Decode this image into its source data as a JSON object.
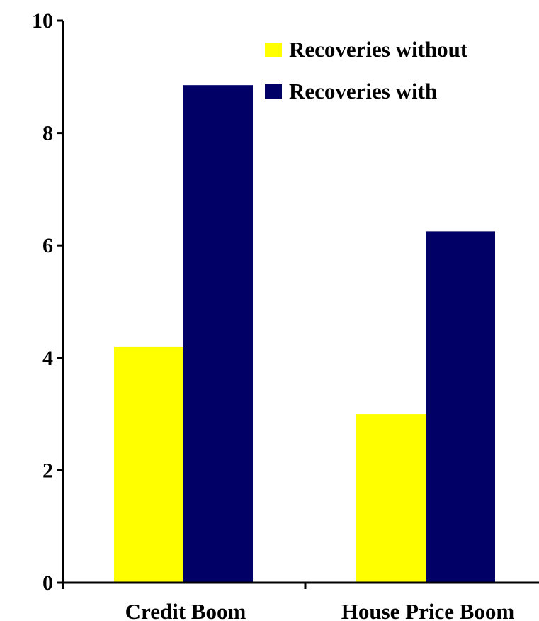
{
  "chart_data": {
    "type": "bar",
    "categories": [
      "Credit Boom",
      "House Price Boom"
    ],
    "series": [
      {
        "name": "Recoveries without",
        "values": [
          4.2,
          3.0
        ],
        "color": "#ffff00"
      },
      {
        "name": "Recoveries with",
        "values": [
          8.85,
          6.25
        ],
        "color": "#000066"
      }
    ],
    "ylim": [
      0,
      10
    ],
    "yticks": [
      0,
      2,
      4,
      6,
      8,
      10
    ],
    "grid": false,
    "legend_position": "top-right",
    "title": "",
    "xlabel": "",
    "ylabel": ""
  }
}
